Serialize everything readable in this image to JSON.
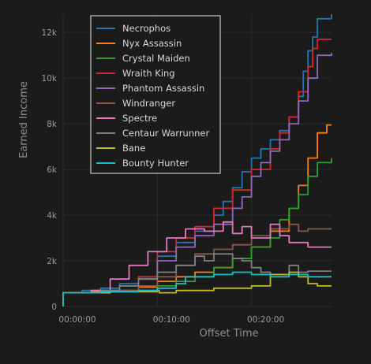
{
  "chart_data": {
    "type": "line",
    "title": "",
    "xlabel": "Offset Time",
    "ylabel": "Earned Income",
    "xlim_minutes": [
      0,
      28.5
    ],
    "ylim": [
      0,
      12800
    ],
    "x_ticks": [
      {
        "v": 0,
        "label": "00:00:00"
      },
      {
        "v": 10,
        "label": "00:10:00"
      },
      {
        "v": 20,
        "label": "00:20:00"
      }
    ],
    "y_ticks": [
      {
        "v": 0,
        "label": "0"
      },
      {
        "v": 2000,
        "label": "2k"
      },
      {
        "v": 4000,
        "label": "4k"
      },
      {
        "v": 6000,
        "label": "6k"
      },
      {
        "v": 8000,
        "label": "8k"
      },
      {
        "v": 10000,
        "label": "10k"
      },
      {
        "v": 12000,
        "label": "12k"
      }
    ],
    "grid": true,
    "legend_position": "top-left",
    "series": [
      {
        "name": "Necrophos",
        "color": "#1f77b4",
        "points": [
          [
            0,
            0
          ],
          [
            0,
            600
          ],
          [
            2,
            700
          ],
          [
            4,
            800
          ],
          [
            6,
            1000
          ],
          [
            8,
            1300
          ],
          [
            10,
            2200
          ],
          [
            12,
            2800
          ],
          [
            14,
            3300
          ],
          [
            16,
            4000
          ],
          [
            17,
            4600
          ],
          [
            18,
            5200
          ],
          [
            19,
            5900
          ],
          [
            20,
            6500
          ],
          [
            21,
            6900
          ],
          [
            22,
            7300
          ],
          [
            23,
            7700
          ],
          [
            24,
            8300
          ],
          [
            25,
            9200
          ],
          [
            25.5,
            10300
          ],
          [
            26,
            11200
          ],
          [
            26.5,
            11800
          ],
          [
            27,
            12600
          ],
          [
            28.5,
            12800
          ]
        ]
      },
      {
        "name": "Nyx Assassin",
        "color": "#ff7f0e",
        "points": [
          [
            0,
            0
          ],
          [
            0,
            600
          ],
          [
            3,
            650
          ],
          [
            6,
            700
          ],
          [
            8,
            850
          ],
          [
            10,
            1100
          ],
          [
            12,
            1300
          ],
          [
            14,
            1500
          ],
          [
            16,
            1700
          ],
          [
            18,
            2100
          ],
          [
            20,
            2600
          ],
          [
            22,
            3300
          ],
          [
            24,
            4300
          ],
          [
            25,
            5300
          ],
          [
            26,
            6500
          ],
          [
            27,
            7600
          ],
          [
            28,
            7950
          ],
          [
            28.5,
            7950
          ]
        ]
      },
      {
        "name": "Crystal Maiden",
        "color": "#2ca02c",
        "points": [
          [
            0,
            0
          ],
          [
            0,
            600
          ],
          [
            5,
            650
          ],
          [
            8,
            700
          ],
          [
            10,
            900
          ],
          [
            12,
            1100
          ],
          [
            14,
            1300
          ],
          [
            16,
            1700
          ],
          [
            18,
            2100
          ],
          [
            20,
            2600
          ],
          [
            22,
            3000
          ],
          [
            23,
            3800
          ],
          [
            24,
            4300
          ],
          [
            25,
            4900
          ],
          [
            26,
            5700
          ],
          [
            27,
            6300
          ],
          [
            28.5,
            6500
          ]
        ]
      },
      {
        "name": "Wraith King",
        "color": "#d62728",
        "points": [
          [
            0,
            0
          ],
          [
            0,
            600
          ],
          [
            3,
            700
          ],
          [
            6,
            900
          ],
          [
            8,
            1300
          ],
          [
            10,
            2400
          ],
          [
            12,
            3000
          ],
          [
            14,
            3500
          ],
          [
            16,
            4300
          ],
          [
            18,
            5100
          ],
          [
            20,
            6000
          ],
          [
            22,
            6900
          ],
          [
            23,
            7600
          ],
          [
            24,
            8300
          ],
          [
            25,
            9400
          ],
          [
            26,
            10500
          ],
          [
            26.5,
            11300
          ],
          [
            27,
            11700
          ],
          [
            28.5,
            11700
          ]
        ]
      },
      {
        "name": "Phantom Assassin",
        "color": "#9467bd",
        "points": [
          [
            0,
            0
          ],
          [
            0,
            600
          ],
          [
            3,
            700
          ],
          [
            6,
            900
          ],
          [
            8,
            1200
          ],
          [
            10,
            2000
          ],
          [
            12,
            2600
          ],
          [
            14,
            3100
          ],
          [
            16,
            3600
          ],
          [
            18,
            4300
          ],
          [
            19,
            4800
          ],
          [
            20,
            5700
          ],
          [
            21,
            6300
          ],
          [
            22,
            6800
          ],
          [
            23,
            7300
          ],
          [
            24,
            8000
          ],
          [
            25,
            9000
          ],
          [
            26,
            10000
          ],
          [
            27,
            11000
          ],
          [
            28.5,
            11100
          ]
        ]
      },
      {
        "name": "Windranger",
        "color": "#8c564b",
        "points": [
          [
            0,
            0
          ],
          [
            0,
            600
          ],
          [
            5,
            700
          ],
          [
            8,
            900
          ],
          [
            10,
            1300
          ],
          [
            12,
            1800
          ],
          [
            14,
            2300
          ],
          [
            16,
            2500
          ],
          [
            18,
            2700
          ],
          [
            20,
            3100
          ],
          [
            22,
            3400
          ],
          [
            24,
            3600
          ],
          [
            25,
            3300
          ],
          [
            26,
            3400
          ],
          [
            28.5,
            3400
          ]
        ]
      },
      {
        "name": "Spectre",
        "color": "#e377c2",
        "points": [
          [
            0,
            0
          ],
          [
            0,
            600
          ],
          [
            3,
            700
          ],
          [
            5,
            1200
          ],
          [
            7,
            1800
          ],
          [
            9,
            2400
          ],
          [
            11,
            3000
          ],
          [
            13,
            3400
          ],
          [
            15,
            3300
          ],
          [
            17,
            3700
          ],
          [
            18,
            3200
          ],
          [
            19,
            3500
          ],
          [
            20,
            3000
          ],
          [
            22,
            3600
          ],
          [
            23,
            3100
          ],
          [
            24,
            2800
          ],
          [
            26,
            2600
          ],
          [
            28.5,
            2600
          ]
        ]
      },
      {
        "name": "Centaur Warrunner",
        "color": "#7f7f7f",
        "points": [
          [
            0,
            0
          ],
          [
            0,
            600
          ],
          [
            4,
            700
          ],
          [
            6,
            900
          ],
          [
            8,
            1200
          ],
          [
            10,
            1500
          ],
          [
            12,
            1800
          ],
          [
            14,
            2200
          ],
          [
            15,
            2000
          ],
          [
            16,
            2300
          ],
          [
            18,
            2100
          ],
          [
            19,
            2000
          ],
          [
            20,
            1700
          ],
          [
            21,
            1500
          ],
          [
            22,
            1400
          ],
          [
            24,
            1800
          ],
          [
            25,
            1500
          ],
          [
            26,
            1550
          ],
          [
            28.5,
            1550
          ]
        ]
      },
      {
        "name": "Bane",
        "color": "#bcbd22",
        "points": [
          [
            0,
            0
          ],
          [
            0,
            600
          ],
          [
            5,
            650
          ],
          [
            10,
            700
          ],
          [
            10.2,
            600
          ],
          [
            12,
            700
          ],
          [
            16,
            800
          ],
          [
            20,
            900
          ],
          [
            22,
            1400
          ],
          [
            24,
            1500
          ],
          [
            25,
            1300
          ],
          [
            26,
            1000
          ],
          [
            27,
            900
          ],
          [
            28.5,
            900
          ]
        ]
      },
      {
        "name": "Bounty Hunter",
        "color": "#17becf",
        "points": [
          [
            0,
            0
          ],
          [
            0,
            600
          ],
          [
            4,
            650
          ],
          [
            8,
            700
          ],
          [
            10,
            800
          ],
          [
            12,
            1000
          ],
          [
            13,
            1300
          ],
          [
            16,
            1400
          ],
          [
            18,
            1500
          ],
          [
            20,
            1400
          ],
          [
            22,
            1300
          ],
          [
            24,
            1400
          ],
          [
            26,
            1300
          ],
          [
            28.5,
            1300
          ]
        ]
      }
    ]
  }
}
